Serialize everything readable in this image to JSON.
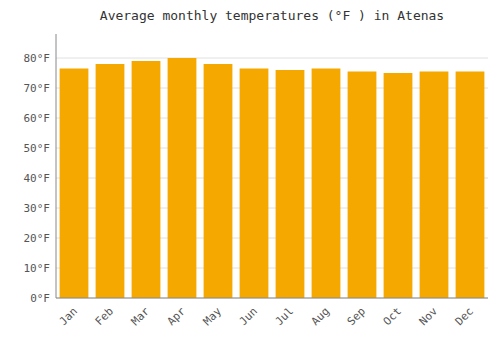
{
  "chart_data": {
    "type": "bar",
    "title": "Average monthly temperatures (°F ) in Atenas",
    "categories": [
      "Jan",
      "Feb",
      "Mar",
      "Apr",
      "May",
      "Jun",
      "Jul",
      "Aug",
      "Sep",
      "Oct",
      "Nov",
      "Dec"
    ],
    "values": [
      76.5,
      78.0,
      79.0,
      80.0,
      78.0,
      76.5,
      76.0,
      76.5,
      75.5,
      75.0,
      75.5,
      75.5
    ],
    "color": "#F5A800",
    "ylim": [
      0,
      88
    ],
    "yticks": [
      {
        "value": 0,
        "label": "0°F"
      },
      {
        "value": 10,
        "label": "10°F"
      },
      {
        "value": 20,
        "label": "20°F"
      },
      {
        "value": 30,
        "label": "30°F"
      },
      {
        "value": 40,
        "label": "40°F"
      },
      {
        "value": 50,
        "label": "50°F"
      },
      {
        "value": 60,
        "label": "60°F"
      },
      {
        "value": 70,
        "label": "70°F"
      },
      {
        "value": 80,
        "label": "80°F"
      }
    ],
    "grid": true
  }
}
